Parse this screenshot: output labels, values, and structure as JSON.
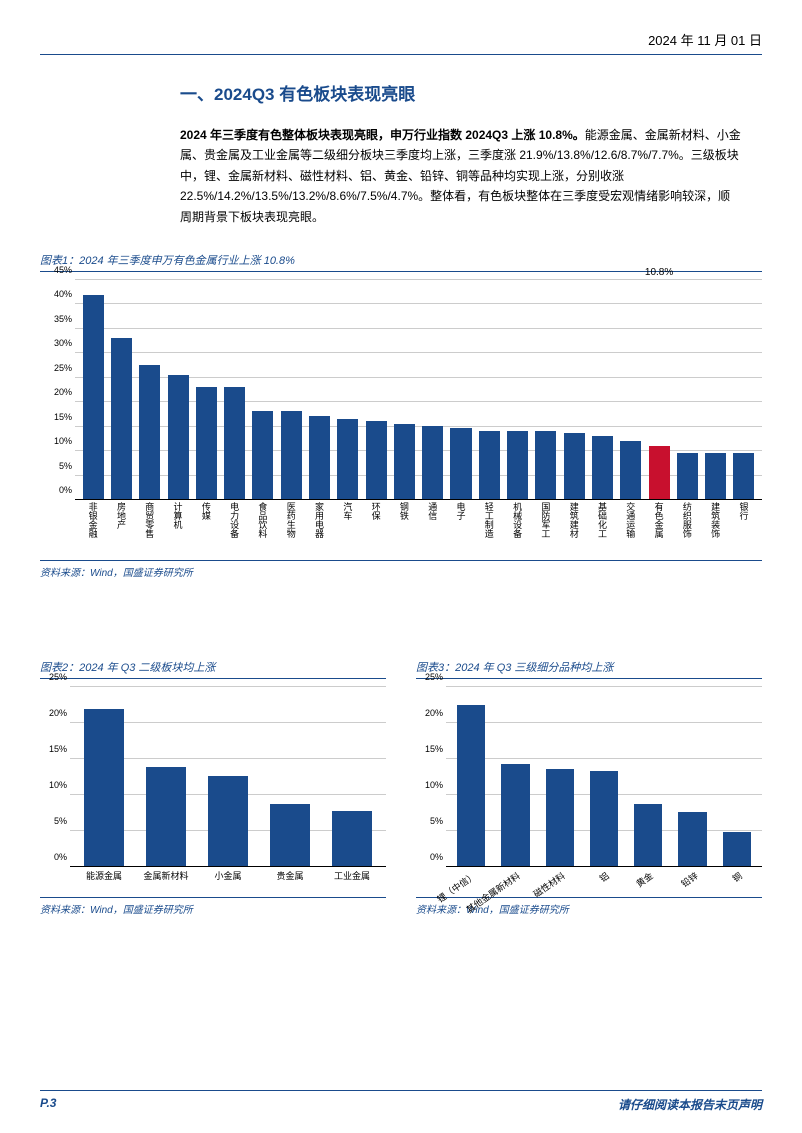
{
  "header": {
    "date": "2024 年 11 月 01 日"
  },
  "section": {
    "title": "一、2024Q3 有色板块表现亮眼",
    "body_bold": "2024 年三季度有色整体板块表现亮眼，申万行业指数 2024Q3 上涨 10.8%。",
    "body_rest": "能源金属、金属新材料、小金属、贵金属及工业金属等二级细分板块三季度均上涨，三季度涨 21.9%/13.8%/12.6/8.7%/7.7%。三级板块中，锂、金属新材料、磁性材料、铝、黄金、铅锌、铜等品种均实现上涨，分别收涨 22.5%/14.2%/13.5%/13.2%/8.6%/7.5%/4.7%。整体看，有色板块整体在三季度受宏观情绪影响较深，顺周期背景下板块表现亮眼。"
  },
  "chart1": {
    "caption": "图表1：2024 年三季度申万有色金属行业上涨 10.8%",
    "source": "资料来源：Wind，国盛证券研究所",
    "type": "bar",
    "ymax": 45,
    "ystep": 5,
    "yticks": [
      "0%",
      "5%",
      "10%",
      "15%",
      "20%",
      "25%",
      "30%",
      "35%",
      "40%",
      "45%"
    ],
    "categories": [
      "非银金融",
      "房地产",
      "商贸零售",
      "计算机",
      "传媒",
      "电力设备",
      "食品饮料",
      "医药生物",
      "家用电器",
      "汽车",
      "环保",
      "钢铁",
      "通信",
      "电子",
      "轻工制造",
      "机械设备",
      "国防军工",
      "建筑建材",
      "基础化工",
      "交通运输",
      "有色金属",
      "纺织服饰",
      "建筑装饰",
      "银行"
    ],
    "values": [
      42,
      33,
      27.5,
      25.5,
      23,
      23,
      18,
      18,
      17,
      16.5,
      16,
      15.5,
      15,
      14.5,
      14,
      14,
      14,
      13.5,
      13,
      12,
      10.8,
      9.5,
      9.5,
      9.5
    ],
    "highlight_index": 20,
    "highlight_label": "10.8%",
    "bar_color": "#1a4b8c",
    "highlight_color": "#c8102e",
    "grid_color": "#cccccc"
  },
  "chart2": {
    "caption": "图表2：2024 年 Q3 二级板块均上涨",
    "source": "资料来源：Wind，国盛证券研究所",
    "type": "bar",
    "ymax": 25,
    "ystep": 5,
    "yticks": [
      "0%",
      "5%",
      "10%",
      "15%",
      "20%",
      "25%"
    ],
    "categories": [
      "能源金属",
      "金属新材料",
      "小金属",
      "贵金属",
      "工业金属"
    ],
    "values": [
      21.9,
      13.8,
      12.6,
      8.7,
      7.7
    ],
    "bar_color": "#1a4b8c",
    "grid_color": "#cccccc"
  },
  "chart3": {
    "caption": "图表3：2024 年 Q3 三级细分品种均上涨",
    "source": "资料来源：Wind，国盛证券研究所",
    "type": "bar",
    "ymax": 25,
    "ystep": 5,
    "yticks": [
      "0%",
      "5%",
      "10%",
      "15%",
      "20%",
      "25%"
    ],
    "categories": [
      "锂（中信）",
      "其他金属新材料",
      "磁性材料",
      "铝",
      "黄金",
      "铅锌",
      "铜"
    ],
    "values": [
      22.5,
      14.2,
      13.5,
      13.2,
      8.6,
      7.5,
      4.7
    ],
    "bar_color": "#1a4b8c",
    "grid_color": "#cccccc"
  },
  "footer": {
    "page": "P.3",
    "disclaimer": "请仔细阅读本报告末页声明"
  }
}
